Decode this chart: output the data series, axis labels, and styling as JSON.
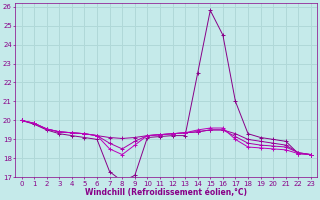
{
  "xlabel": "Windchill (Refroidissement éolien,°C)",
  "background_color": "#c5eaea",
  "grid_color": "#b0d8d8",
  "xlim": [
    -0.5,
    23.5
  ],
  "ylim": [
    17,
    26.2
  ],
  "yticks": [
    17,
    18,
    19,
    20,
    21,
    22,
    23,
    24,
    25,
    26
  ],
  "xticks": [
    0,
    1,
    2,
    3,
    4,
    5,
    6,
    7,
    8,
    9,
    10,
    11,
    12,
    13,
    14,
    15,
    16,
    17,
    18,
    19,
    20,
    21,
    22,
    23
  ],
  "series": [
    {
      "x": [
        0,
        1,
        2,
        3,
        4,
        5,
        6,
        7,
        8,
        9,
        10,
        11,
        12,
        13,
        14,
        15,
        16,
        17,
        18,
        19,
        20,
        21,
        22,
        23
      ],
      "y": [
        20.0,
        19.8,
        19.5,
        19.3,
        19.2,
        19.1,
        19.0,
        17.3,
        16.8,
        17.1,
        19.1,
        19.15,
        19.2,
        19.2,
        22.5,
        25.8,
        24.5,
        21.0,
        19.3,
        19.1,
        19.0,
        18.9,
        18.25,
        18.2
      ],
      "color": "#880088"
    },
    {
      "x": [
        0,
        1,
        2,
        3,
        4,
        5,
        6,
        7,
        8,
        9,
        10,
        11,
        12,
        13,
        14,
        15,
        16,
        17,
        18,
        19,
        20,
        21,
        22,
        23
      ],
      "y": [
        20.0,
        19.85,
        19.55,
        19.4,
        19.35,
        19.3,
        19.2,
        19.1,
        19.05,
        19.1,
        19.2,
        19.25,
        19.3,
        19.35,
        19.4,
        19.5,
        19.5,
        19.3,
        19.0,
        18.9,
        18.8,
        18.7,
        18.3,
        18.2
      ],
      "color": "#990099"
    },
    {
      "x": [
        0,
        1,
        2,
        3,
        4,
        5,
        6,
        7,
        8,
        9,
        10,
        11,
        12,
        13,
        14,
        15,
        16,
        17,
        18,
        19,
        20,
        21,
        22,
        23
      ],
      "y": [
        20.0,
        19.85,
        19.55,
        19.4,
        19.35,
        19.3,
        19.2,
        18.8,
        18.5,
        18.9,
        19.2,
        19.25,
        19.3,
        19.35,
        19.4,
        19.5,
        19.5,
        19.15,
        18.8,
        18.7,
        18.65,
        18.6,
        18.3,
        18.2
      ],
      "color": "#aa00aa"
    },
    {
      "x": [
        0,
        1,
        2,
        3,
        4,
        5,
        6,
        7,
        8,
        9,
        10,
        11,
        12,
        13,
        14,
        15,
        16,
        17,
        18,
        19,
        20,
        21,
        22,
        23
      ],
      "y": [
        20.0,
        19.85,
        19.55,
        19.4,
        19.35,
        19.3,
        19.2,
        18.5,
        18.2,
        18.7,
        19.2,
        19.25,
        19.3,
        19.35,
        19.5,
        19.6,
        19.6,
        19.0,
        18.6,
        18.55,
        18.5,
        18.45,
        18.25,
        18.2
      ],
      "color": "#bb00bb"
    }
  ]
}
